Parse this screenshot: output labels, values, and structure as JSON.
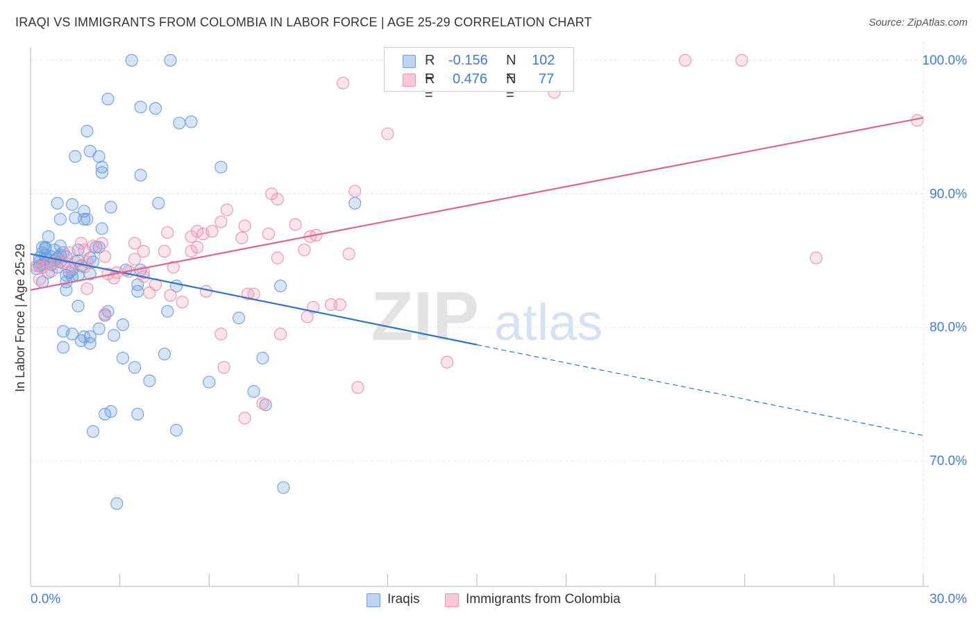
{
  "title": "IRAQI VS IMMIGRANTS FROM COLOMBIA IN LABOR FORCE | AGE 25-29 CORRELATION CHART",
  "source": "Source: ZipAtlas.com",
  "watermark": {
    "zip": "ZIP",
    "atlas": "atlas"
  },
  "legend": {
    "r_label": "R =",
    "n_label": "N =",
    "rows": [
      {
        "r": "-0.156",
        "n": "102"
      },
      {
        "r": "0.476",
        "n": "77"
      }
    ]
  },
  "chart_data": {
    "type": "scatter",
    "xlabel": "",
    "ylabel": "In Labor Force | Age 25-29",
    "x_tick_labels": [
      "0.0%",
      "30.0%"
    ],
    "y_tick_labels": [
      "100.0%",
      "90.0%",
      "80.0%",
      "70.0%"
    ],
    "y_ticks": [
      100,
      90,
      80,
      70
    ],
    "xlim": [
      0,
      30
    ],
    "ylim": [
      60.6,
      101.4
    ],
    "grid": true,
    "colors": {
      "iraqis": "#6d9ee0",
      "colombia": "#ee92b0",
      "iraqis_line": "#2f72cc",
      "colombia_line": "#e0638f",
      "tick_label": "#3f7bd6"
    },
    "series": [
      {
        "name": "Iraqis",
        "points": [
          [
            3.4,
            100.0
          ],
          [
            4.7,
            100.0
          ],
          [
            2.6,
            97.1
          ],
          [
            3.7,
            96.5
          ],
          [
            4.2,
            96.4
          ],
          [
            5.0,
            95.3
          ],
          [
            5.4,
            95.4
          ],
          [
            1.9,
            94.7
          ],
          [
            2.0,
            93.2
          ],
          [
            1.5,
            92.8
          ],
          [
            2.3,
            92.8
          ],
          [
            2.4,
            92.0
          ],
          [
            2.4,
            91.6
          ],
          [
            6.4,
            92.0
          ],
          [
            3.7,
            91.4
          ],
          [
            0.9,
            89.3
          ],
          [
            1.4,
            89.2
          ],
          [
            2.7,
            89.0
          ],
          [
            4.3,
            89.3
          ],
          [
            10.9,
            89.3
          ],
          [
            1.8,
            88.7
          ],
          [
            1.0,
            88.1
          ],
          [
            1.5,
            88.2
          ],
          [
            1.8,
            88.1
          ],
          [
            1.9,
            88.1
          ],
          [
            2.4,
            87.4
          ],
          [
            0.6,
            86.8
          ],
          [
            0.4,
            86.0
          ],
          [
            0.5,
            85.9
          ],
          [
            1.0,
            86.1
          ],
          [
            1.6,
            85.8
          ],
          [
            2.2,
            86.0
          ],
          [
            0.3,
            85.2
          ],
          [
            0.4,
            85.6
          ],
          [
            0.5,
            85.4
          ],
          [
            0.7,
            85.3
          ],
          [
            0.8,
            85.0
          ],
          [
            1.0,
            85.4
          ],
          [
            1.2,
            85.3
          ],
          [
            0.3,
            84.6
          ],
          [
            0.2,
            84.4
          ],
          [
            0.6,
            84.1
          ],
          [
            0.9,
            84.5
          ],
          [
            1.3,
            84.1
          ],
          [
            1.7,
            84.6
          ],
          [
            2.1,
            84.9
          ],
          [
            3.2,
            84.3
          ],
          [
            3.7,
            84.3
          ],
          [
            1.2,
            83.9
          ],
          [
            1.2,
            83.4
          ],
          [
            1.4,
            83.8
          ],
          [
            1.6,
            83.9
          ],
          [
            2.0,
            84.0
          ],
          [
            0.4,
            83.4
          ],
          [
            1.2,
            82.8
          ],
          [
            3.6,
            83.2
          ],
          [
            4.9,
            83.1
          ],
          [
            8.4,
            83.1
          ],
          [
            3.6,
            82.7
          ],
          [
            1.6,
            81.6
          ],
          [
            2.6,
            81.2
          ],
          [
            2.5,
            80.9
          ],
          [
            4.6,
            81.2
          ],
          [
            7.0,
            80.7
          ],
          [
            3.1,
            80.2
          ],
          [
            2.3,
            79.9
          ],
          [
            1.1,
            79.7
          ],
          [
            1.4,
            79.5
          ],
          [
            1.7,
            79.0
          ],
          [
            1.8,
            79.3
          ],
          [
            2.0,
            79.3
          ],
          [
            2.0,
            78.8
          ],
          [
            2.8,
            79.4
          ],
          [
            1.1,
            78.5
          ],
          [
            4.5,
            78.0
          ],
          [
            3.1,
            77.7
          ],
          [
            7.8,
            77.7
          ],
          [
            3.5,
            77.0
          ],
          [
            4.0,
            76.0
          ],
          [
            6.0,
            75.9
          ],
          [
            7.5,
            75.2
          ],
          [
            7.9,
            74.2
          ],
          [
            2.5,
            73.5
          ],
          [
            2.7,
            73.7
          ],
          [
            3.6,
            73.5
          ],
          [
            2.1,
            72.2
          ],
          [
            4.9,
            72.3
          ],
          [
            8.5,
            68.0
          ],
          [
            2.9,
            66.8
          ],
          [
            0.5,
            85.1
          ],
          [
            0.3,
            84.9
          ],
          [
            0.9,
            85.2
          ],
          [
            1.1,
            85.6
          ],
          [
            0.5,
            86.0
          ],
          [
            0.7,
            84.7
          ],
          [
            1.4,
            84.3
          ],
          [
            2.0,
            85.2
          ],
          [
            0.8,
            85.8
          ],
          [
            0.4,
            84.7
          ],
          [
            1.6,
            85.0
          ],
          [
            2.3,
            86.0
          ],
          [
            1.0,
            84.9
          ]
        ]
      },
      {
        "name": "Immigrants from Colombia",
        "points": [
          [
            16.8,
            100.0
          ],
          [
            22.0,
            100.0
          ],
          [
            23.9,
            100.0
          ],
          [
            10.5,
            98.3
          ],
          [
            17.6,
            97.6
          ],
          [
            12.0,
            94.5
          ],
          [
            29.8,
            95.5
          ],
          [
            8.1,
            90.0
          ],
          [
            10.9,
            90.2
          ],
          [
            8.3,
            89.6
          ],
          [
            6.6,
            88.8
          ],
          [
            5.6,
            87.2
          ],
          [
            6.1,
            87.2
          ],
          [
            5.8,
            87.0
          ],
          [
            6.4,
            87.9
          ],
          [
            7.2,
            87.6
          ],
          [
            8.9,
            87.7
          ],
          [
            4.6,
            87.1
          ],
          [
            5.4,
            86.8
          ],
          [
            7.1,
            86.7
          ],
          [
            8.0,
            87.0
          ],
          [
            9.4,
            86.8
          ],
          [
            9.6,
            86.9
          ],
          [
            2.1,
            86.1
          ],
          [
            2.4,
            86.3
          ],
          [
            3.5,
            86.3
          ],
          [
            5.4,
            85.7
          ],
          [
            5.6,
            86.0
          ],
          [
            4.5,
            85.7
          ],
          [
            3.8,
            85.7
          ],
          [
            9.2,
            85.8
          ],
          [
            1.7,
            86.3
          ],
          [
            1.8,
            85.8
          ],
          [
            8.3,
            85.2
          ],
          [
            10.7,
            85.5
          ],
          [
            3.5,
            85.1
          ],
          [
            2.5,
            85.3
          ],
          [
            26.4,
            85.2
          ],
          [
            0.4,
            84.5
          ],
          [
            0.7,
            84.2
          ],
          [
            1.1,
            84.8
          ],
          [
            1.3,
            84.4
          ],
          [
            1.8,
            84.5
          ],
          [
            1.9,
            84.9
          ],
          [
            2.9,
            84.1
          ],
          [
            3.3,
            84.2
          ],
          [
            3.8,
            84.1
          ],
          [
            4.8,
            84.5
          ],
          [
            2.8,
            83.7
          ],
          [
            4.2,
            83.2
          ],
          [
            0.3,
            83.6
          ],
          [
            1.9,
            82.9
          ],
          [
            4.0,
            82.6
          ],
          [
            4.7,
            82.4
          ],
          [
            5.9,
            82.7
          ],
          [
            7.3,
            82.5
          ],
          [
            7.5,
            82.5
          ],
          [
            9.5,
            81.5
          ],
          [
            10.1,
            81.7
          ],
          [
            10.4,
            81.7
          ],
          [
            5.1,
            81.9
          ],
          [
            2.5,
            81.0
          ],
          [
            9.3,
            80.8
          ],
          [
            6.4,
            79.5
          ],
          [
            8.4,
            79.5
          ],
          [
            14.0,
            77.4
          ],
          [
            6.5,
            77.0
          ],
          [
            11.0,
            75.5
          ],
          [
            7.8,
            74.3
          ],
          [
            7.2,
            73.2
          ],
          [
            0.6,
            84.8
          ],
          [
            0.9,
            85.0
          ],
          [
            1.5,
            84.9
          ],
          [
            0.2,
            84.6
          ],
          [
            3.8,
            83.8
          ],
          [
            2.6,
            84.0
          ],
          [
            1.3,
            85.6
          ]
        ]
      }
    ],
    "trendlines": [
      {
        "name": "Iraqis",
        "solid": [
          [
            0.0,
            85.5
          ],
          [
            15.0,
            78.7
          ]
        ],
        "dashed": [
          [
            15.0,
            78.7
          ],
          [
            30.0,
            71.9
          ]
        ]
      },
      {
        "name": "Immigrants from Colombia",
        "solid": [
          [
            0.0,
            82.8
          ],
          [
            30.0,
            95.7
          ]
        ]
      }
    ]
  }
}
